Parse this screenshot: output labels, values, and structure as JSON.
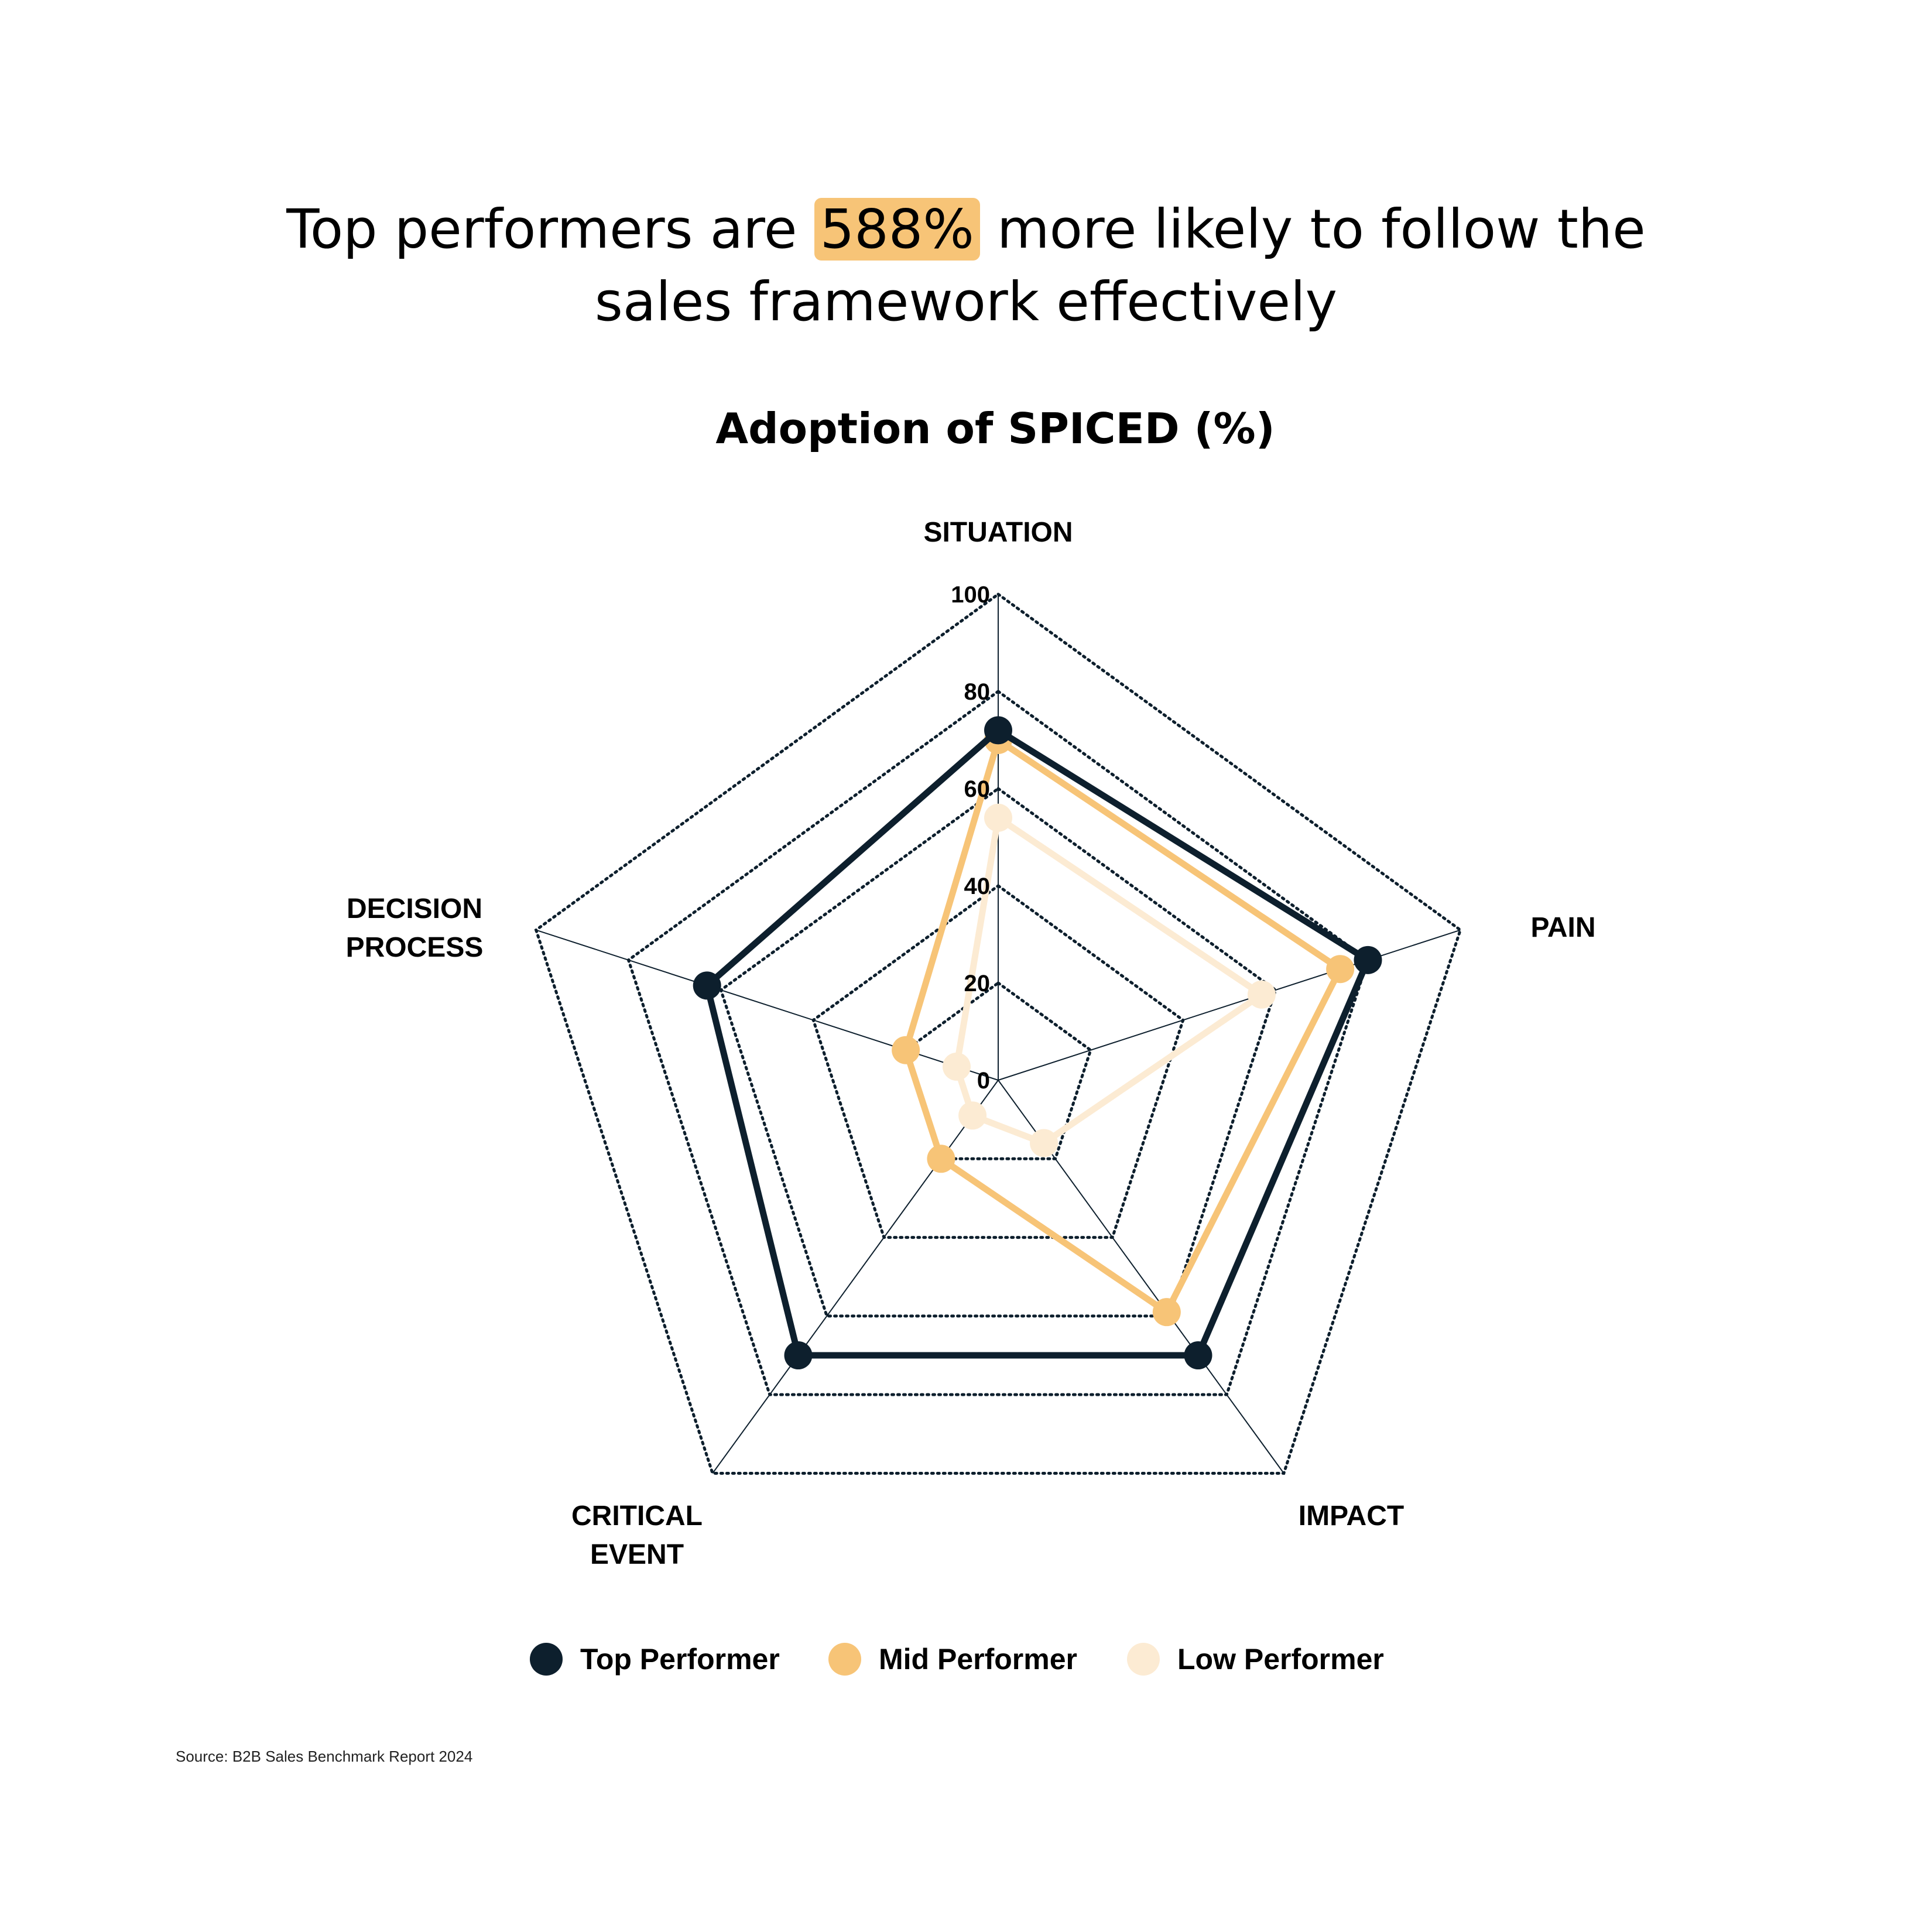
{
  "headline": {
    "before": "Top performers are ",
    "highlight": "588%",
    "after_line1": " more likely to follow the",
    "line2": "sales framework effectively"
  },
  "colors": {
    "top": "#0D1F2D",
    "mid": "#F7C477",
    "low": "#FCEBD3",
    "grid": "#0D1F2D",
    "highlight": "#F7C477"
  },
  "chart_data": {
    "type": "radar",
    "title": "Adoption of SPICED (%)",
    "axes": [
      "SITUATION",
      "PAIN",
      "IMPACT",
      "CRITICAL EVENT",
      "DECISION PROCESS"
    ],
    "axis_label_lines": [
      [
        "SITUATION"
      ],
      [
        "PAIN"
      ],
      [
        "IMPACT"
      ],
      [
        "CRITICAL",
        "EVENT"
      ],
      [
        "DECISION",
        "PROCESS"
      ]
    ],
    "ticks": [
      0,
      20,
      40,
      60,
      80,
      100
    ],
    "range": [
      0,
      100
    ],
    "grid": true,
    "legend_position": "bottom",
    "series": [
      {
        "name": "Top Performer",
        "color": "#0D1F2D",
        "values": [
          72,
          80,
          70,
          70,
          63
        ]
      },
      {
        "name": "Mid Performer",
        "color": "#F7C477",
        "values": [
          70,
          74,
          59,
          20,
          20
        ]
      },
      {
        "name": "Low Performer",
        "color": "#FCEBD3",
        "values": [
          54,
          57,
          16,
          9,
          9
        ]
      }
    ]
  },
  "source": "Source: B2B Sales Benchmark Report 2024"
}
